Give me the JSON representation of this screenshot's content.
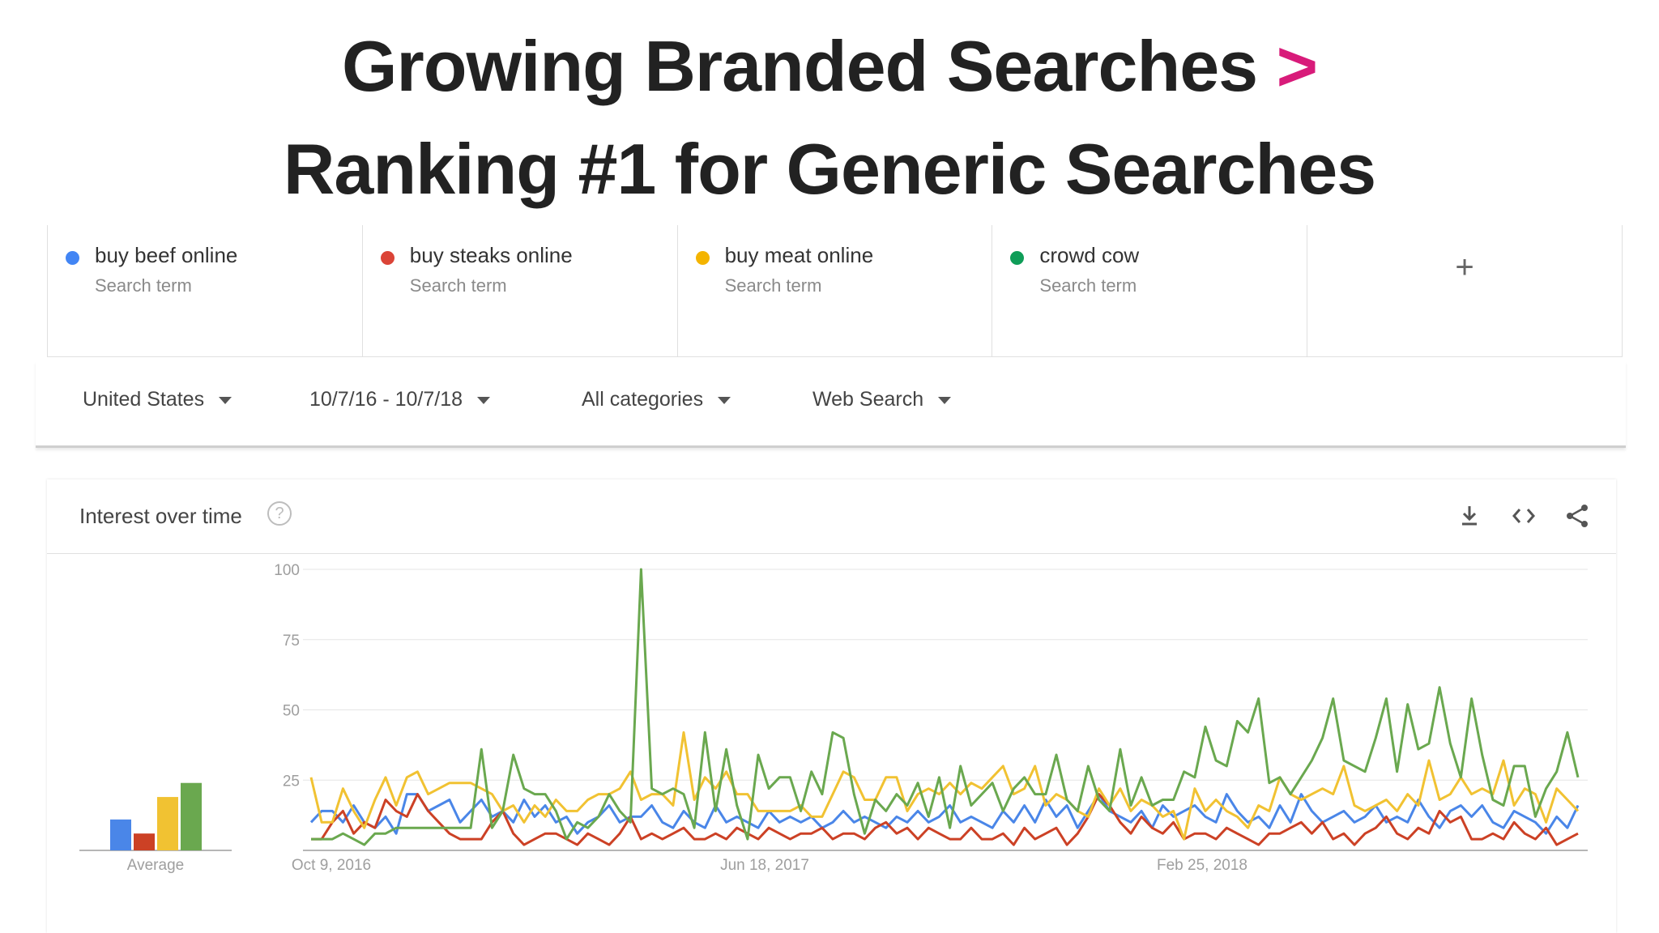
{
  "slide": {
    "title_line1": "Growing Branded Searches",
    "title_gt": ">",
    "title_line2": "Ranking #1 for Generic Searches"
  },
  "terms": [
    {
      "name": "buy beef online",
      "sub": "Search term",
      "color": "#4285f4"
    },
    {
      "name": "buy steaks online",
      "sub": "Search term",
      "color": "#db4437"
    },
    {
      "name": "buy meat online",
      "sub": "Search term",
      "color": "#f4b400"
    },
    {
      "name": "crowd cow",
      "sub": "Search term",
      "color": "#0f9d58"
    }
  ],
  "add_term_icon": "plus-icon",
  "filters": {
    "region": "United States",
    "date_range": "10/7/16 - 10/7/18",
    "category": "All categories",
    "search_type": "Web Search"
  },
  "card": {
    "title": "Interest over time",
    "help_glyph": "?",
    "icons": [
      "download-icon",
      "embed-icon",
      "share-icon"
    ]
  },
  "chart_data": {
    "type": "line",
    "ylim": [
      0,
      100
    ],
    "yticks": [
      25,
      50,
      75,
      100
    ],
    "x_tick_labels": [
      "Oct 9, 2016",
      "Jun 18, 2017",
      "Feb 25, 2018"
    ],
    "grid": true,
    "average_label": "Average",
    "averages": [
      {
        "series": "buy beef online",
        "value": 11
      },
      {
        "series": "buy steaks online",
        "value": 6
      },
      {
        "series": "buy meat online",
        "value": 19
      },
      {
        "series": "crowd cow",
        "value": 24
      }
    ],
    "series": [
      {
        "name": "buy beef online",
        "color": "#4a86e8",
        "values": [
          10,
          14,
          14,
          10,
          16,
          10,
          8,
          12,
          6,
          20,
          20,
          14,
          16,
          18,
          10,
          14,
          18,
          12,
          14,
          10,
          18,
          12,
          16,
          10,
          12,
          6,
          10,
          12,
          16,
          10,
          12,
          12,
          16,
          10,
          8,
          14,
          10,
          8,
          16,
          10,
          12,
          10,
          8,
          14,
          10,
          12,
          10,
          12,
          8,
          10,
          14,
          10,
          12,
          10,
          8,
          12,
          10,
          14,
          10,
          12,
          16,
          10,
          12,
          10,
          8,
          14,
          10,
          16,
          10,
          18,
          12,
          16,
          8,
          14,
          20,
          14,
          12,
          10,
          14,
          8,
          16,
          12,
          14,
          16,
          12,
          10,
          20,
          14,
          10,
          12,
          8,
          16,
          10,
          20,
          14,
          10,
          12,
          14,
          10,
          12,
          16,
          10,
          12,
          10,
          18,
          12,
          8,
          14,
          16,
          12,
          16,
          10,
          8,
          14,
          12,
          10,
          6,
          12,
          8,
          16
        ]
      },
      {
        "series_note": "",
        "name": "buy steaks online",
        "color": "#cc4125",
        "values": [
          4,
          4,
          10,
          14,
          6,
          10,
          8,
          18,
          14,
          12,
          20,
          14,
          10,
          6,
          4,
          4,
          4,
          10,
          14,
          6,
          2,
          4,
          6,
          6,
          4,
          2,
          6,
          4,
          2,
          6,
          12,
          4,
          6,
          4,
          6,
          8,
          4,
          4,
          6,
          4,
          8,
          6,
          4,
          8,
          6,
          4,
          6,
          6,
          8,
          4,
          6,
          6,
          4,
          8,
          10,
          6,
          8,
          4,
          8,
          6,
          4,
          4,
          8,
          4,
          4,
          6,
          2,
          8,
          4,
          6,
          8,
          2,
          6,
          12,
          20,
          16,
          10,
          6,
          12,
          8,
          6,
          10,
          4,
          6,
          6,
          4,
          8,
          6,
          4,
          2,
          6,
          6,
          8,
          10,
          6,
          10,
          4,
          6,
          2,
          6,
          8,
          12,
          6,
          4,
          8,
          6,
          14,
          10,
          12,
          4,
          4,
          6,
          4,
          10,
          6,
          4,
          8,
          2,
          4,
          6
        ]
      },
      {
        "name": "buy meat online",
        "color": "#f1c232",
        "values": [
          26,
          10,
          10,
          22,
          14,
          8,
          18,
          26,
          16,
          26,
          28,
          20,
          22,
          24,
          24,
          24,
          22,
          20,
          14,
          16,
          10,
          16,
          12,
          18,
          14,
          14,
          18,
          20,
          20,
          22,
          28,
          18,
          20,
          20,
          16,
          42,
          18,
          26,
          22,
          28,
          20,
          20,
          14,
          14,
          14,
          14,
          16,
          12,
          12,
          20,
          28,
          26,
          18,
          18,
          26,
          26,
          14,
          20,
          22,
          20,
          24,
          20,
          24,
          22,
          26,
          30,
          20,
          22,
          30,
          16,
          20,
          18,
          14,
          12,
          22,
          16,
          22,
          14,
          18,
          16,
          12,
          14,
          4,
          22,
          14,
          18,
          14,
          12,
          8,
          16,
          14,
          26,
          20,
          18,
          20,
          22,
          20,
          30,
          16,
          14,
          16,
          18,
          14,
          20,
          16,
          32,
          18,
          20,
          26,
          20,
          22,
          20,
          32,
          16,
          22,
          20,
          10,
          22,
          18,
          14
        ]
      },
      {
        "name": "crowd cow",
        "color": "#6aa84f",
        "values": [
          4,
          4,
          4,
          6,
          4,
          2,
          6,
          6,
          8,
          8,
          8,
          8,
          8,
          8,
          8,
          8,
          36,
          8,
          14,
          34,
          22,
          20,
          20,
          14,
          4,
          10,
          8,
          12,
          20,
          14,
          10,
          100,
          22,
          20,
          22,
          20,
          8,
          42,
          14,
          36,
          16,
          4,
          34,
          22,
          26,
          26,
          14,
          28,
          20,
          42,
          40,
          20,
          6,
          18,
          14,
          20,
          16,
          24,
          12,
          26,
          8,
          30,
          16,
          20,
          24,
          14,
          22,
          26,
          20,
          20,
          34,
          18,
          14,
          30,
          18,
          14,
          36,
          16,
          26,
          16,
          18,
          18,
          28,
          26,
          44,
          32,
          30,
          46,
          42,
          54,
          24,
          26,
          20,
          26,
          32,
          40,
          54,
          32,
          30,
          28,
          40,
          54,
          28,
          52,
          36,
          38,
          58,
          38,
          26,
          54,
          34,
          18,
          16,
          30,
          30,
          12,
          22,
          28,
          42,
          26
        ]
      }
    ]
  }
}
